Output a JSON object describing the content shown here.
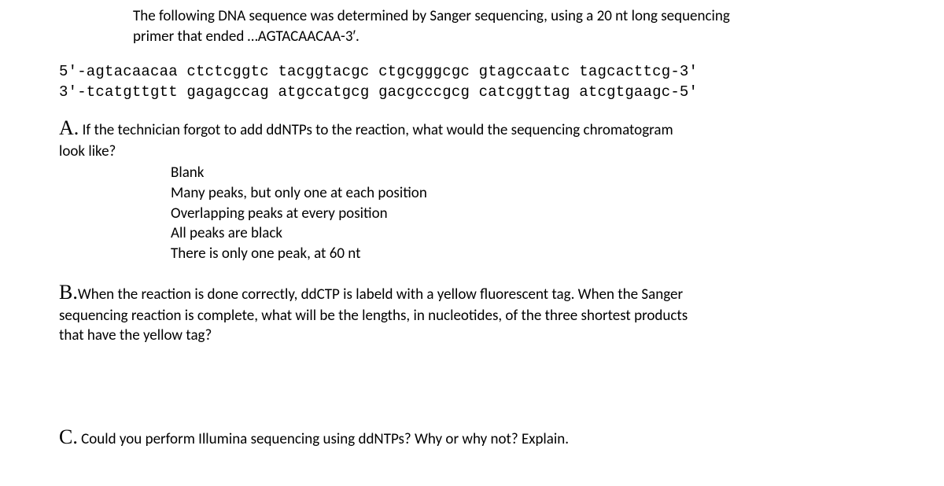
{
  "intro": {
    "line1": "The following DNA sequence was determined by Sanger sequencing, using a 20 nt long sequencing",
    "line2": "primer that ended …AGTACAACAA-3′."
  },
  "sequence": {
    "line1": "5′-agtacaacaa ctctcggtc tacggtacgc ctgcgggcgc gtagccaatc tagcacttcg-3′",
    "line2": "3′-tcatgttgtt gagagccag atgccatgcg gacgcccgcg catcggttag atcgtgaagc-5′"
  },
  "questionA": {
    "label": "A.",
    "text1": " If the technician forgot to add ddNTPs to the reaction, what would the sequencing chromatogram",
    "text2": "look like?",
    "options": [
      "Blank",
      "Many peaks, but only one at each position",
      "Overlapping peaks at every position",
      "All peaks are black",
      "There is only one peak, at 60 nt"
    ]
  },
  "questionB": {
    "label": "B.",
    "text1": "When the reaction is done correctly, ddCTP is labeld with a yellow fluorescent tag.  When the Sanger",
    "text2": "sequencing reaction is complete, what will be the lengths, in nucleotides, of the three shortest products",
    "text3": "that have the yellow tag?"
  },
  "questionC": {
    "label": "C.",
    "text1": " Could you perform Illumina sequencing using ddNTPs?  Why or why not?  Explain."
  }
}
